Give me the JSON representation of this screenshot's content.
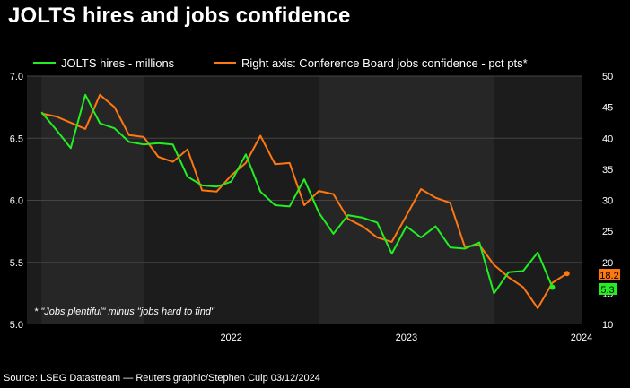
{
  "title": "JOLTS hires and jobs confidence",
  "source": "Source: LSEG Datastream — Reuters graphic/Stephen Culp 03/12/2024",
  "footnote": "* \"Jobs plentiful\" minus \"jobs hard to find\"",
  "colors": {
    "background": "#000000",
    "panel": "#1c1c1c",
    "band": "#262626",
    "grid": "#444444",
    "hires": "#22ee22",
    "confidence": "#ff7711",
    "text": "#ffffff"
  },
  "chart_data": {
    "type": "line",
    "x_axis_type": "date",
    "x_ticks": [
      "2022",
      "2023",
      "2024"
    ],
    "x_range": [
      "2021-05",
      "2024-07"
    ],
    "y_left": {
      "ticks": [
        "5.0",
        "5.5",
        "6.0",
        "6.5",
        "7.0"
      ],
      "range": [
        5.0,
        7.0
      ]
    },
    "y_right": {
      "ticks": [
        "10",
        "15",
        "20",
        "25",
        "30",
        "35",
        "40",
        "45",
        "50"
      ],
      "range": [
        10,
        50
      ]
    },
    "grid": true,
    "legend_position": "top",
    "series": [
      {
        "name": "JOLTS hires - millions",
        "axis": "left",
        "color": "#22ee22",
        "end_label": "5.3",
        "x": [
          "2021-06",
          "2021-07",
          "2021-08",
          "2021-09",
          "2021-10",
          "2021-11",
          "2021-12",
          "2022-01",
          "2022-02",
          "2022-03",
          "2022-04",
          "2022-05",
          "2022-06",
          "2022-07",
          "2022-08",
          "2022-09",
          "2022-10",
          "2022-11",
          "2022-12",
          "2023-01",
          "2023-02",
          "2023-03",
          "2023-04",
          "2023-05",
          "2023-06",
          "2023-07",
          "2023-08",
          "2023-09",
          "2023-10",
          "2023-11",
          "2023-12",
          "2024-01",
          "2024-02",
          "2024-03",
          "2024-04",
          "2024-05"
        ],
        "values": [
          6.71,
          6.57,
          6.42,
          6.85,
          6.62,
          6.58,
          6.47,
          6.45,
          6.46,
          6.45,
          6.19,
          6.12,
          6.11,
          6.15,
          6.37,
          6.07,
          5.96,
          5.95,
          6.17,
          5.9,
          5.73,
          5.88,
          5.86,
          5.82,
          5.57,
          5.79,
          5.7,
          5.79,
          5.62,
          5.61,
          5.66,
          5.25,
          5.42,
          5.43,
          5.58,
          5.3
        ]
      },
      {
        "name": "Right axis: Conference Board jobs confidence - pct pts*",
        "axis": "right",
        "color": "#ff7711",
        "end_label": "18.2",
        "x": [
          "2021-06",
          "2021-07",
          "2021-08",
          "2021-09",
          "2021-10",
          "2021-11",
          "2021-12",
          "2022-01",
          "2022-02",
          "2022-03",
          "2022-04",
          "2022-05",
          "2022-06",
          "2022-07",
          "2022-08",
          "2022-09",
          "2022-10",
          "2022-11",
          "2022-12",
          "2023-01",
          "2023-02",
          "2023-03",
          "2023-04",
          "2023-05",
          "2023-06",
          "2023-07",
          "2023-08",
          "2023-09",
          "2023-10",
          "2023-11",
          "2023-12",
          "2024-01",
          "2024-02",
          "2024-03",
          "2024-04",
          "2024-05",
          "2024-06"
        ],
        "values": [
          44.0,
          43.5,
          42.5,
          41.5,
          47.0,
          45.0,
          40.5,
          40.2,
          37.0,
          36.2,
          38.2,
          31.6,
          31.4,
          34.0,
          36.0,
          40.4,
          35.8,
          36.0,
          29.2,
          31.5,
          31.0,
          27.0,
          25.8,
          24.0,
          23.3,
          27.5,
          31.8,
          30.4,
          29.6,
          22.5,
          22.8,
          19.6,
          17.6,
          16.0,
          12.6,
          16.7,
          18.2
        ]
      }
    ]
  }
}
